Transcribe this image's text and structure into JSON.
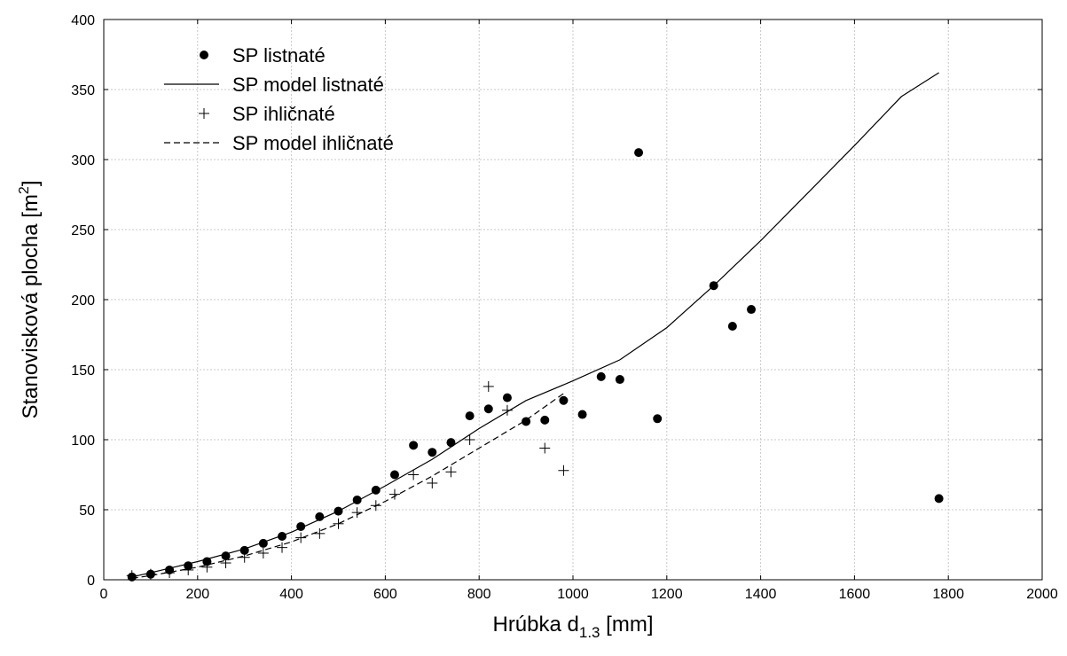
{
  "chart_data": {
    "type": "scatter",
    "xlabel": {
      "main": "Hrúbka d",
      "sub": "1.3",
      "unit": " [mm]"
    },
    "ylabel": {
      "main": "Stanovisková plocha [m",
      "sup": "2",
      "end": "]"
    },
    "xlim": [
      0,
      2000
    ],
    "ylim": [
      0,
      400
    ],
    "xticks": [
      "0",
      "200",
      "400",
      "600",
      "800",
      "1000",
      "1200",
      "1400",
      "1600",
      "1800",
      "2000"
    ],
    "yticks": [
      "0",
      "50",
      "100",
      "150",
      "200",
      "250",
      "300",
      "350",
      "400"
    ],
    "grid": true,
    "legend_position": "top-left",
    "legend": [
      {
        "label": "SP listnaté",
        "marker": "filled-circle"
      },
      {
        "label": "SP model listnaté",
        "marker": "solid-line"
      },
      {
        "label": "SP ihličnaté",
        "marker": "plus"
      },
      {
        "label": "SP model ihličnaté",
        "marker": "dashed-line"
      }
    ],
    "series": [
      {
        "name": "SP listnaté",
        "kind": "points",
        "marker": "filled-circle",
        "points": [
          [
            60,
            2
          ],
          [
            100,
            4
          ],
          [
            140,
            7
          ],
          [
            180,
            10
          ],
          [
            220,
            13
          ],
          [
            260,
            17
          ],
          [
            300,
            21
          ],
          [
            340,
            26
          ],
          [
            380,
            31
          ],
          [
            420,
            38
          ],
          [
            460,
            45
          ],
          [
            500,
            49
          ],
          [
            540,
            57
          ],
          [
            580,
            64
          ],
          [
            620,
            75
          ],
          [
            660,
            96
          ],
          [
            700,
            91
          ],
          [
            740,
            98
          ],
          [
            780,
            117
          ],
          [
            820,
            122
          ],
          [
            860,
            130
          ],
          [
            900,
            113
          ],
          [
            940,
            114
          ],
          [
            980,
            128
          ],
          [
            1020,
            118
          ],
          [
            1060,
            145
          ],
          [
            1100,
            143
          ],
          [
            1140,
            305
          ],
          [
            1180,
            115
          ],
          [
            1300,
            210
          ],
          [
            1340,
            181
          ],
          [
            1380,
            193
          ],
          [
            1780,
            58
          ]
        ]
      },
      {
        "name": "SP model listnaté",
        "kind": "line",
        "style": "solid",
        "points": [
          [
            60,
            2
          ],
          [
            100,
            5
          ],
          [
            200,
            13
          ],
          [
            300,
            22
          ],
          [
            400,
            34
          ],
          [
            500,
            49
          ],
          [
            600,
            67
          ],
          [
            700,
            86
          ],
          [
            800,
            108
          ],
          [
            900,
            128
          ],
          [
            1000,
            142
          ],
          [
            1100,
            157
          ],
          [
            1200,
            180
          ],
          [
            1300,
            210
          ],
          [
            1400,
            242
          ],
          [
            1500,
            276
          ],
          [
            1600,
            310
          ],
          [
            1700,
            345
          ],
          [
            1780,
            362
          ]
        ]
      },
      {
        "name": "SP ihličnaté",
        "kind": "points",
        "marker": "plus",
        "points": [
          [
            60,
            3
          ],
          [
            100,
            4
          ],
          [
            140,
            5
          ],
          [
            180,
            7
          ],
          [
            220,
            9
          ],
          [
            260,
            12
          ],
          [
            300,
            16
          ],
          [
            340,
            19
          ],
          [
            380,
            23
          ],
          [
            420,
            30
          ],
          [
            460,
            33
          ],
          [
            500,
            40
          ],
          [
            540,
            48
          ],
          [
            580,
            53
          ],
          [
            620,
            61
          ],
          [
            660,
            75
          ],
          [
            700,
            69
          ],
          [
            740,
            77
          ],
          [
            780,
            100
          ],
          [
            820,
            138
          ],
          [
            860,
            121
          ],
          [
            940,
            94
          ],
          [
            980,
            78
          ]
        ]
      },
      {
        "name": "SP model ihličnaté",
        "kind": "line",
        "style": "dashed",
        "points": [
          [
            60,
            1
          ],
          [
            100,
            3
          ],
          [
            200,
            9
          ],
          [
            300,
            17
          ],
          [
            400,
            27
          ],
          [
            500,
            40
          ],
          [
            600,
            56
          ],
          [
            700,
            74
          ],
          [
            800,
            94
          ],
          [
            900,
            114
          ],
          [
            980,
            133
          ]
        ]
      }
    ]
  }
}
